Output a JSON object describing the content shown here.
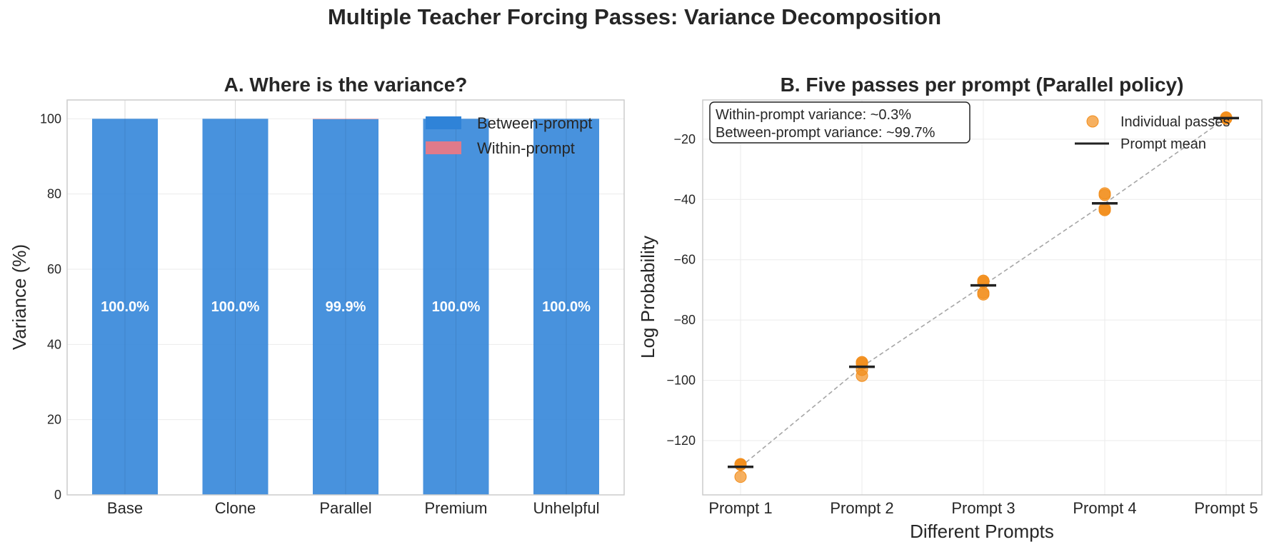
{
  "figure": {
    "title": "Multiple Teacher Forcing Passes: Variance Decomposition"
  },
  "colors": {
    "between": "#2f83d8",
    "within": "#e07a8a",
    "passes": "#f28e1c",
    "mean": "#222222",
    "trend": "#a6a6a6"
  },
  "chart_data": [
    {
      "type": "bar",
      "stacked": true,
      "title": "A. Where is the variance?",
      "xlabel": "",
      "ylabel": "Variance (%)",
      "categories": [
        "Base",
        "Clone",
        "Parallel",
        "Premium",
        "Unhelpful"
      ],
      "series": [
        {
          "name": "Between-prompt",
          "values": [
            100.0,
            100.0,
            99.9,
            100.0,
            100.0
          ]
        },
        {
          "name": "Within-prompt",
          "values": [
            0.0,
            0.0,
            0.1,
            0.0,
            0.0
          ]
        }
      ],
      "data_labels": [
        "100.0%",
        "100.0%",
        "99.9%",
        "100.0%",
        "100.0%"
      ],
      "ylim": [
        0,
        105
      ],
      "yticks": [
        0,
        20,
        40,
        60,
        80,
        100
      ],
      "grid": true,
      "legend_position": "top-right"
    },
    {
      "type": "scatter",
      "title": "B. Five passes per prompt (Parallel policy)",
      "xlabel": "Different Prompts",
      "ylabel": "Log Probability",
      "categories": [
        "Prompt 1",
        "Prompt 2",
        "Prompt 3",
        "Prompt 4",
        "Prompt 5"
      ],
      "series": [
        {
          "name": "Individual passes",
          "points": [
            [
              -128.0,
              -128.0,
              -132.0,
              -128.0,
              -127.8
            ],
            [
              -94.5,
              -94.0,
              -98.5,
              -96.5,
              -94.0
            ],
            [
              -67.5,
              -67.0,
              -71.0,
              -71.5,
              -67.0
            ],
            [
              -38.5,
              -43.5,
              -43.0,
              -38.0,
              -43.5
            ],
            [
              -13.0,
              -13.2,
              -13.0,
              -12.8,
              -13.0
            ]
          ]
        },
        {
          "name": "Prompt mean",
          "values": [
            -128.7,
            -95.5,
            -68.5,
            -41.3,
            -13.0
          ]
        }
      ],
      "annotation": [
        "Within-prompt variance: ~0.3%",
        "Between-prompt variance: ~99.7%"
      ],
      "ylim": [
        -138,
        -7
      ],
      "yticks": [
        -120,
        -100,
        -80,
        -60,
        -40,
        -20
      ],
      "grid": true,
      "legend_position": "top-right"
    }
  ]
}
